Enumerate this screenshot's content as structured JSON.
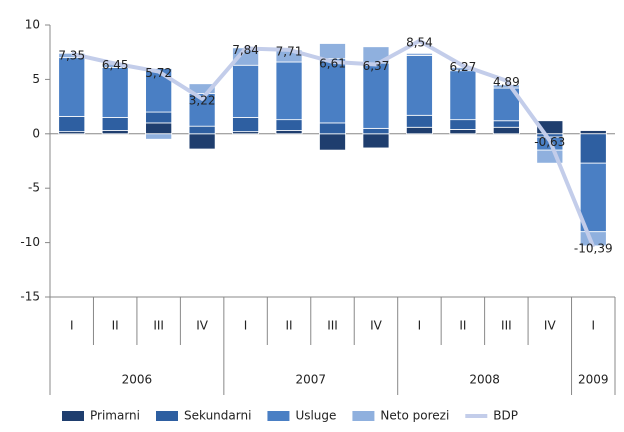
{
  "chart_data": {
    "type": "bar",
    "stacked": true,
    "categories": [
      "I",
      "II",
      "III",
      "IV",
      "I",
      "II",
      "III",
      "IV",
      "I",
      "II",
      "III",
      "IV",
      "I"
    ],
    "groups": [
      {
        "name": "2006",
        "size": 4
      },
      {
        "name": "2007",
        "size": 4
      },
      {
        "name": "2008",
        "size": 4
      },
      {
        "name": "2009",
        "size": 1
      }
    ],
    "series": [
      {
        "name": "Primarni",
        "color": "#1f3e6e",
        "values": [
          0.2,
          0.3,
          1.0,
          -1.4,
          0.2,
          0.3,
          -1.5,
          -1.3,
          0.6,
          0.4,
          0.6,
          1.2,
          0.3
        ]
      },
      {
        "name": "Sekundarni",
        "color": "#2e5fa1",
        "values": [
          1.4,
          1.2,
          1.0,
          0.7,
          1.3,
          1.0,
          1.0,
          0.5,
          1.1,
          0.9,
          0.6,
          -0.3,
          -2.7
        ]
      },
      {
        "name": "Usluge",
        "color": "#4a7fc4",
        "values": [
          5.4,
          4.6,
          4.0,
          3.0,
          4.8,
          5.3,
          5.9,
          6.0,
          5.5,
          4.5,
          3.0,
          -1.2,
          -6.3
        ]
      },
      {
        "name": "Neto porezi",
        "color": "#8fb0de",
        "values": [
          0.4,
          0.3,
          -0.5,
          0.9,
          1.6,
          1.1,
          1.4,
          1.5,
          0.2,
          0.3,
          0.3,
          -1.2,
          -1.3
        ]
      },
      {
        "name": "BDP",
        "type": "line",
        "color": "#c3cdea",
        "values": [
          7.35,
          6.45,
          5.72,
          3.22,
          7.84,
          7.71,
          6.61,
          6.37,
          8.54,
          6.27,
          4.89,
          -0.63,
          -10.39
        ],
        "value_labels": [
          "7,35",
          "6,45",
          "5,72",
          "3,22",
          "7,84",
          "7,71",
          "6,61",
          "6,37",
          "8,54",
          "6,27",
          "4,89",
          "-0,63",
          "-10,39"
        ]
      }
    ],
    "ylim": [
      -15,
      10
    ],
    "yticks": [
      -15,
      -10,
      -5,
      0,
      5,
      10
    ],
    "legend": "bottom"
  }
}
